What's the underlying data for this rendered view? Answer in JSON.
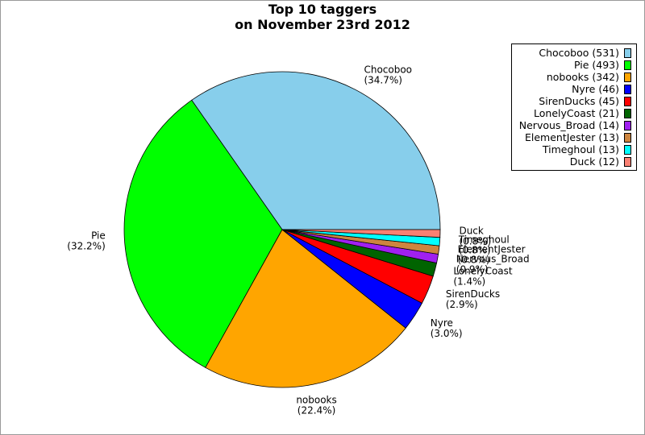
{
  "chart_data": {
    "type": "pie",
    "title_line1": "Top 10 taggers",
    "title_line2": "on November 23rd 2012",
    "slices": [
      {
        "label": "Chocoboo",
        "value": 531,
        "percent": "(34.7%)",
        "legend": "Chocoboo (531)",
        "color": "#87ceeb"
      },
      {
        "label": "Pie",
        "value": 493,
        "percent": "(32.2%)",
        "legend": "Pie (493)",
        "color": "#00ff00"
      },
      {
        "label": "nobooks",
        "value": 342,
        "percent": "(22.4%)",
        "legend": "nobooks (342)",
        "color": "#ffa500"
      },
      {
        "label": "Nyre",
        "value": 46,
        "percent": "(3.0%)",
        "legend": "Nyre (46)",
        "color": "#0000ff"
      },
      {
        "label": "SirenDucks",
        "value": 45,
        "percent": "(2.9%)",
        "legend": "SirenDucks (45)",
        "color": "#ff0000"
      },
      {
        "label": "LonelyCoast",
        "value": 21,
        "percent": "(1.4%)",
        "legend": "LonelyCoast (21)",
        "color": "#006400"
      },
      {
        "label": "Nervous_Broad",
        "value": 14,
        "percent": "(0.9%)",
        "legend": "Nervous_Broad (14)",
        "color": "#a020f0"
      },
      {
        "label": "ElementJester",
        "value": 13,
        "percent": "(0.8%)",
        "legend": "ElementJester (13)",
        "color": "#cd853f"
      },
      {
        "label": "Timeghoul",
        "value": 13,
        "percent": "(0.8%)",
        "legend": "Timeghoul (13)",
        "color": "#00ffff"
      },
      {
        "label": "Duck",
        "value": 12,
        "percent": "(0.8%)",
        "legend": "Duck (12)",
        "color": "#fa8072"
      }
    ],
    "legend_position": "top-right"
  }
}
